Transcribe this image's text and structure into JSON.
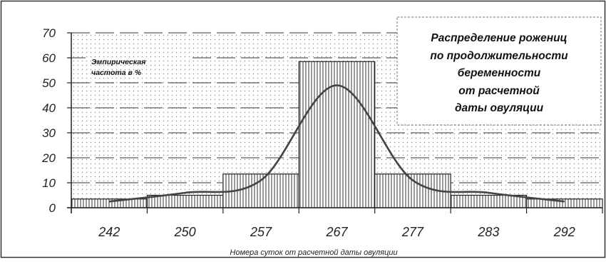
{
  "chart_data": {
    "type": "bar",
    "title_lines": [
      "Распределение рожениц",
      "по продолжительности",
      "беременности",
      "от расчетной",
      "даты овуляции"
    ],
    "ylabel_lines": [
      "Эмпирическая",
      "частота в %"
    ],
    "xlabel": "Номера суток от расчетной даты овуляции",
    "categories": [
      "242",
      "250",
      "257",
      "267",
      "277",
      "283",
      "292"
    ],
    "values": [
      3.5,
      5,
      13.5,
      58.5,
      13.5,
      5,
      3.5
    ],
    "yticks": [
      0,
      10,
      20,
      30,
      40,
      50,
      60,
      70
    ],
    "ylim": [
      0,
      70
    ],
    "grid": "horizontal dashed",
    "curve": {
      "type": "line",
      "values": [
        2.5,
        6,
        11,
        49,
        11,
        6,
        2.5
      ]
    }
  }
}
